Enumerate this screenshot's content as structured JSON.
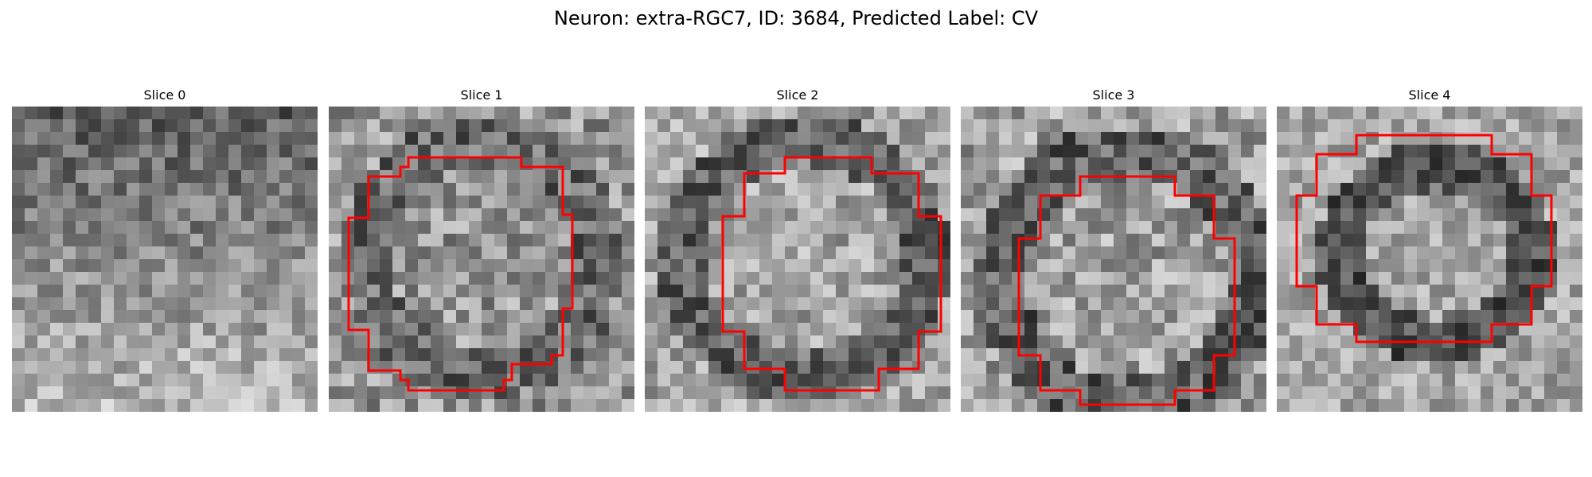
{
  "figure": {
    "title": "Neuron: extra-RGC7, ID: 3684, Predicted Label: CV"
  },
  "panels": [
    {
      "title": "Slice 0",
      "has_outline": false
    },
    {
      "title": "Slice 1",
      "has_outline": true
    },
    {
      "title": "Slice 2",
      "has_outline": true
    },
    {
      "title": "Slice 3",
      "has_outline": true
    },
    {
      "title": "Slice 4",
      "has_outline": true
    }
  ],
  "colors": {
    "outline": "#ff0000",
    "background": "#ffffff",
    "colormap": "gray"
  }
}
